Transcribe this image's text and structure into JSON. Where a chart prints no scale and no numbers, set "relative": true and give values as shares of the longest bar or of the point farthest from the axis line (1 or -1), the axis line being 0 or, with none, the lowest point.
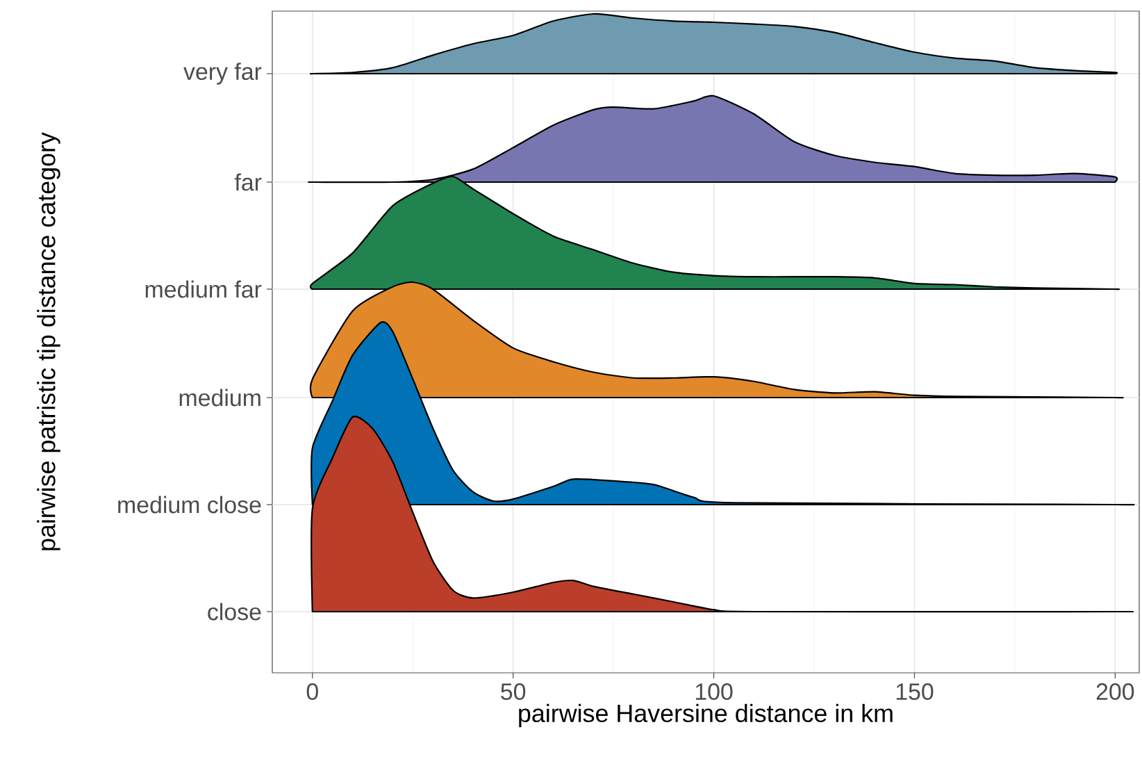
{
  "chart_data": [
    {
      "type": "area",
      "relative": true,
      "ylabel": "very far",
      "xlabel": "pairwise Haversine distance in km",
      "annotations": [
        "pairwise patristic tip distance category"
      ],
      "xlim": [
        -10,
        206
      ],
      "xticks": [
        0,
        50,
        100,
        150,
        200
      ],
      "tick_labels": "x",
      "grid": true,
      "series": [
        {
          "color": "#6e9bb0",
          "x": [
            0,
            10,
            20,
            30,
            40,
            50,
            60,
            70,
            80,
            90,
            100,
            110,
            120,
            130,
            140,
            150,
            160,
            170,
            180,
            190,
            200
          ],
          "values": [
            0,
            0.02,
            0.1,
            0.31,
            0.5,
            0.64,
            0.88,
            1,
            0.93,
            0.88,
            0.86,
            0.83,
            0.79,
            0.69,
            0.52,
            0.36,
            0.26,
            0.21,
            0.1,
            0.05,
            0.02
          ]
        }
      ]
    },
    {
      "type": "area",
      "relative": true,
      "ylabel": "far",
      "xlim": [
        -10,
        206
      ],
      "xticks": [
        0,
        50,
        100,
        150,
        200
      ],
      "tick_labels": false,
      "series": [
        {
          "color": "#7876b1",
          "x": [
            0,
            20,
            30,
            40,
            50,
            60,
            70,
            75,
            85,
            95,
            100,
            110,
            120,
            130,
            140,
            150,
            160,
            170,
            180,
            190,
            200
          ],
          "values": [
            0,
            0,
            0.03,
            0.15,
            0.4,
            0.66,
            0.84,
            0.87,
            0.85,
            0.94,
            1,
            0.79,
            0.47,
            0.31,
            0.23,
            0.18,
            0.1,
            0.08,
            0.08,
            0.1,
            0.06
          ]
        }
      ]
    },
    {
      "type": "area",
      "relative": true,
      "ylabel": "medium far",
      "xlim": [
        -10,
        206
      ],
      "xticks": [
        0,
        50,
        100,
        150,
        200
      ],
      "tick_labels": false,
      "series": [
        {
          "color": "#218350",
          "x": [
            0,
            10,
            20,
            30,
            35,
            40,
            50,
            60,
            70,
            80,
            90,
            100,
            110,
            120,
            130,
            140,
            150,
            160,
            170,
            180,
            200
          ],
          "values": [
            0.05,
            0.32,
            0.74,
            0.94,
            1,
            0.89,
            0.67,
            0.47,
            0.35,
            0.23,
            0.15,
            0.12,
            0.11,
            0.11,
            0.11,
            0.1,
            0.05,
            0.04,
            0.02,
            0.01,
            0
          ]
        }
      ]
    },
    {
      "type": "area",
      "relative": true,
      "ylabel": "medium",
      "xlim": [
        -10,
        206
      ],
      "xticks": [
        0,
        50,
        100,
        150,
        200
      ],
      "tick_labels": false,
      "series": [
        {
          "color": "#e1882a",
          "x": [
            0,
            10,
            20,
            25,
            30,
            40,
            50,
            60,
            70,
            80,
            90,
            100,
            110,
            120,
            130,
            140,
            150,
            160,
            200
          ],
          "values": [
            0.16,
            0.75,
            0.96,
            1,
            0.94,
            0.67,
            0.43,
            0.31,
            0.22,
            0.17,
            0.17,
            0.18,
            0.14,
            0.07,
            0.04,
            0.05,
            0.02,
            0.01,
            0
          ]
        }
      ]
    },
    {
      "type": "area",
      "relative": true,
      "ylabel": "medium close",
      "xlim": [
        -10,
        206
      ],
      "xticks": [
        0,
        50,
        100,
        150,
        200
      ],
      "tick_labels": false,
      "series": [
        {
          "color": "#0072b5",
          "x": [
            0,
            5,
            10,
            17,
            20,
            25,
            30,
            35,
            40,
            45,
            50,
            60,
            65,
            75,
            85,
            95,
            105,
            200
          ],
          "values": [
            0.31,
            0.57,
            0.82,
            1,
            0.95,
            0.69,
            0.42,
            0.19,
            0.07,
            0.02,
            0.03,
            0.1,
            0.14,
            0.13,
            0.11,
            0.04,
            0.01,
            0
          ]
        }
      ]
    },
    {
      "type": "area",
      "relative": true,
      "ylabel": "close",
      "xlim": [
        -10,
        206
      ],
      "xticks": [
        0,
        50,
        100,
        150,
        200
      ],
      "tick_labels": false,
      "series": [
        {
          "color": "#bb3e2a",
          "x": [
            0,
            5,
            10,
            15,
            20,
            25,
            30,
            35,
            40,
            50,
            60,
            65,
            70,
            80,
            90,
            100,
            110,
            200
          ],
          "values": [
            0.53,
            0.79,
            1.0,
            0.94,
            0.77,
            0.51,
            0.26,
            0.11,
            0.07,
            0.1,
            0.15,
            0.16,
            0.13,
            0.09,
            0.05,
            0.01,
            0,
            0
          ]
        }
      ]
    }
  ]
}
